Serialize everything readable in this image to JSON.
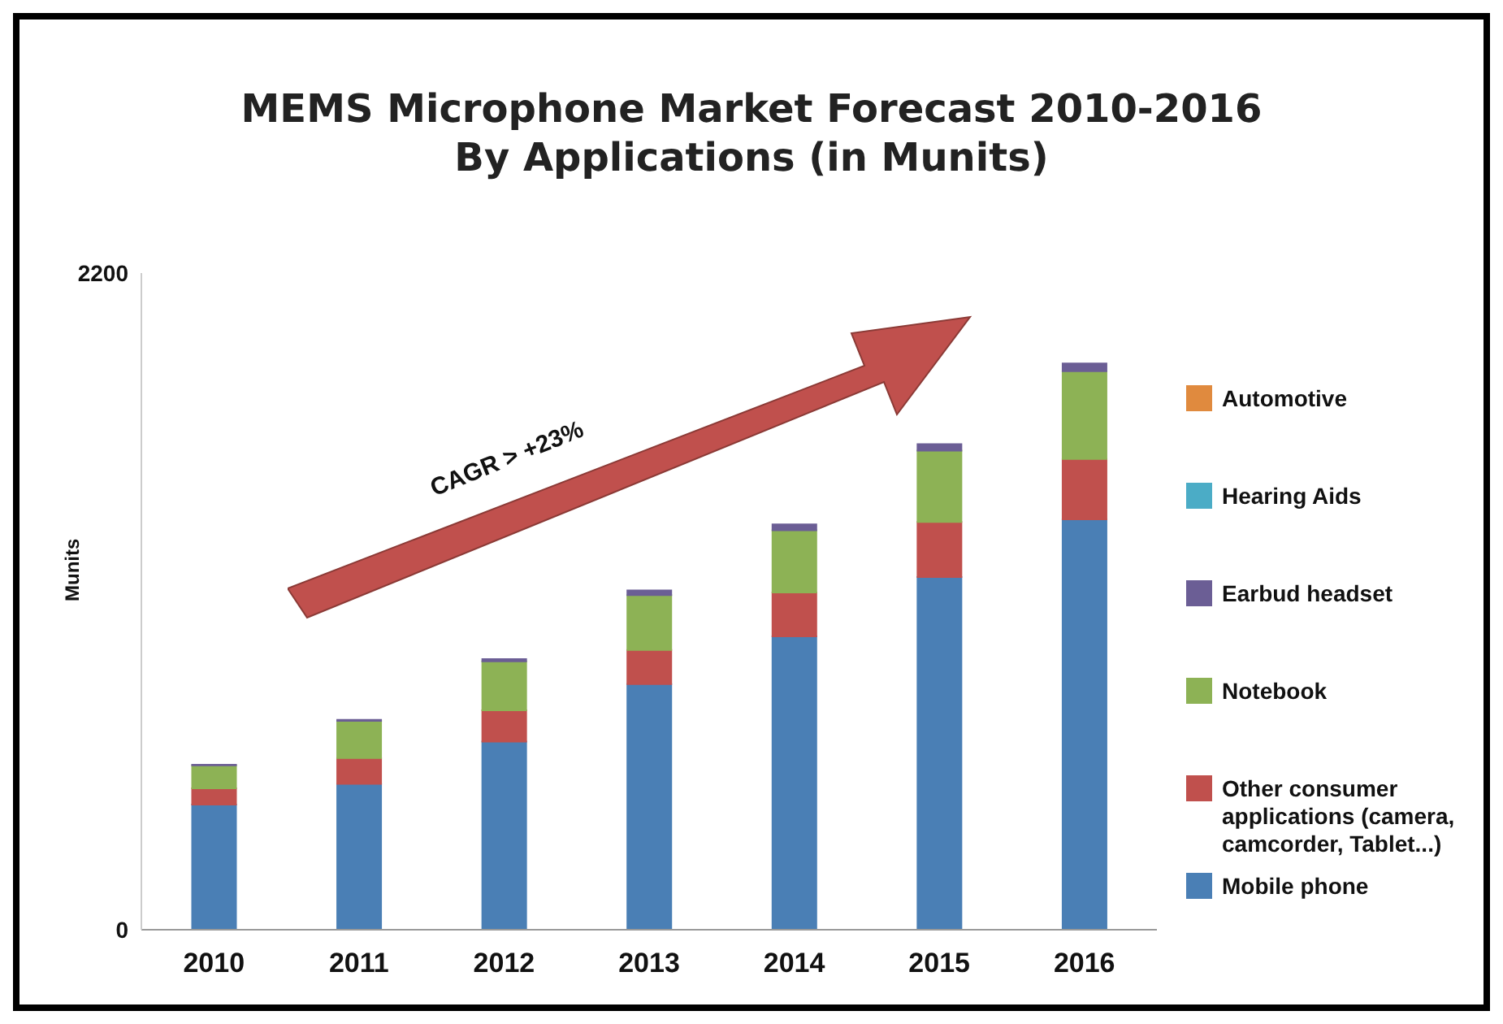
{
  "chart_data": {
    "type": "bar",
    "title": "MEMS Microphone Market Forecast 2010-2016\nBy Applications (in Munits)",
    "ylabel": "Munits",
    "categories": [
      "2010",
      "2011",
      "2012",
      "2013",
      "2014",
      "2015",
      "2016"
    ],
    "stacked": true,
    "ylim": [
      0,
      2200
    ],
    "yticks": [
      0,
      2200
    ],
    "grid": false,
    "legend": "right",
    "annotations": [
      "CAGR > +23%"
    ],
    "series": [
      {
        "name": "Mobile phone",
        "color": "#4a7fb5",
        "values": [
          419,
          489,
          630,
          823,
          983,
          1182,
          1375
        ]
      },
      {
        "name": "Other consumer applications (camera, camcorder, Tablet...)",
        "color": "#c0504d",
        "values": [
          55,
          86,
          105,
          114,
          147,
          184,
          202
        ]
      },
      {
        "name": "Notebook",
        "color": "#8db255",
        "values": [
          77,
          125,
          164,
          184,
          208,
          239,
          294
        ]
      },
      {
        "name": "Earbud headset",
        "color": "#6b5e95",
        "values": [
          2,
          3,
          8,
          16,
          20,
          22,
          26
        ]
      },
      {
        "name": "Hearing Aids",
        "color": "#4bacc6",
        "values": [
          null,
          null,
          null,
          null,
          null,
          null,
          null
        ]
      },
      {
        "name": "Automotive",
        "color": "#e08a3e",
        "values": [
          null,
          null,
          null,
          null,
          null,
          null,
          null
        ]
      }
    ]
  }
}
